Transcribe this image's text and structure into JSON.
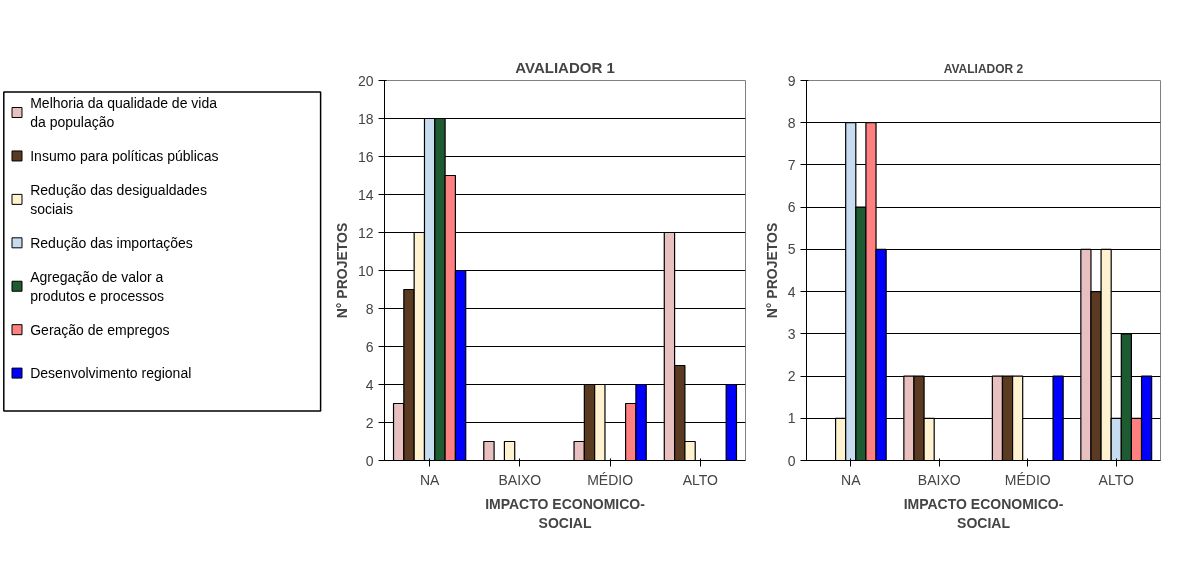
{
  "chart_data": [
    {
      "type": "bar",
      "title": "AVALIADOR 1",
      "xlabel": "IMPACTO ECONOMICO-\nSOCIAL",
      "ylabel": "N° PROJETOS",
      "categories": [
        "NA",
        "BAIXO",
        "MÉDIO",
        "ALTO"
      ],
      "ylim": [
        0,
        20
      ],
      "yticks": [
        0,
        2,
        4,
        6,
        8,
        10,
        12,
        14,
        16,
        18,
        20
      ],
      "grid": "y",
      "legend": "left",
      "series": [
        {
          "name": "Melhoria da qualidade de vida\nda população",
          "color": "#e8c0c0",
          "values": [
            3,
            1,
            1,
            12
          ]
        },
        {
          "name": "Insumo para políticas públicas",
          "color": "#5a3a20",
          "values": [
            9,
            0,
            4,
            5
          ]
        },
        {
          "name": "Redução das desigualdades\nsociais",
          "color": "#fff2d0",
          "values": [
            12,
            1,
            4,
            1
          ]
        },
        {
          "name": "Redução das importações",
          "color": "#c8dcf0",
          "values": [
            18,
            0,
            0,
            0
          ]
        },
        {
          "name": "Agregação de valor a\nprodutos e processos",
          "color": "#1e5a32",
          "values": [
            18,
            0,
            0,
            0
          ]
        },
        {
          "name": "Geração de empregos",
          "color": "#ff8080",
          "values": [
            15,
            0,
            3,
            0
          ]
        },
        {
          "name": "Desenvolvimento regional",
          "color": "#0000ff",
          "values": [
            10,
            0,
            4,
            4
          ]
        }
      ]
    },
    {
      "type": "bar",
      "title": "AVALIADOR 2",
      "xlabel": "IMPACTO ECONOMICO-\nSOCIAL",
      "ylabel": "N° PROJETOS",
      "categories": [
        "NA",
        "BAIXO",
        "MÉDIO",
        "ALTO"
      ],
      "ylim": [
        0,
        9
      ],
      "yticks": [
        0,
        1,
        2,
        3,
        4,
        5,
        6,
        7,
        8,
        9
      ],
      "grid": "y",
      "series": [
        {
          "color": "#e8c0c0",
          "values": [
            0,
            2,
            2,
            5
          ]
        },
        {
          "color": "#5a3a20",
          "values": [
            0,
            2,
            2,
            4
          ]
        },
        {
          "color": "#fff2d0",
          "values": [
            1,
            1,
            2,
            5
          ]
        },
        {
          "color": "#c8dcf0",
          "values": [
            8,
            0,
            0,
            1
          ]
        },
        {
          "color": "#1e5a32",
          "values": [
            6,
            0,
            0,
            3
          ]
        },
        {
          "color": "#ff8080",
          "values": [
            8,
            0,
            0,
            1
          ]
        },
        {
          "color": "#0000ff",
          "values": [
            5,
            0,
            2,
            2
          ]
        }
      ]
    }
  ]
}
